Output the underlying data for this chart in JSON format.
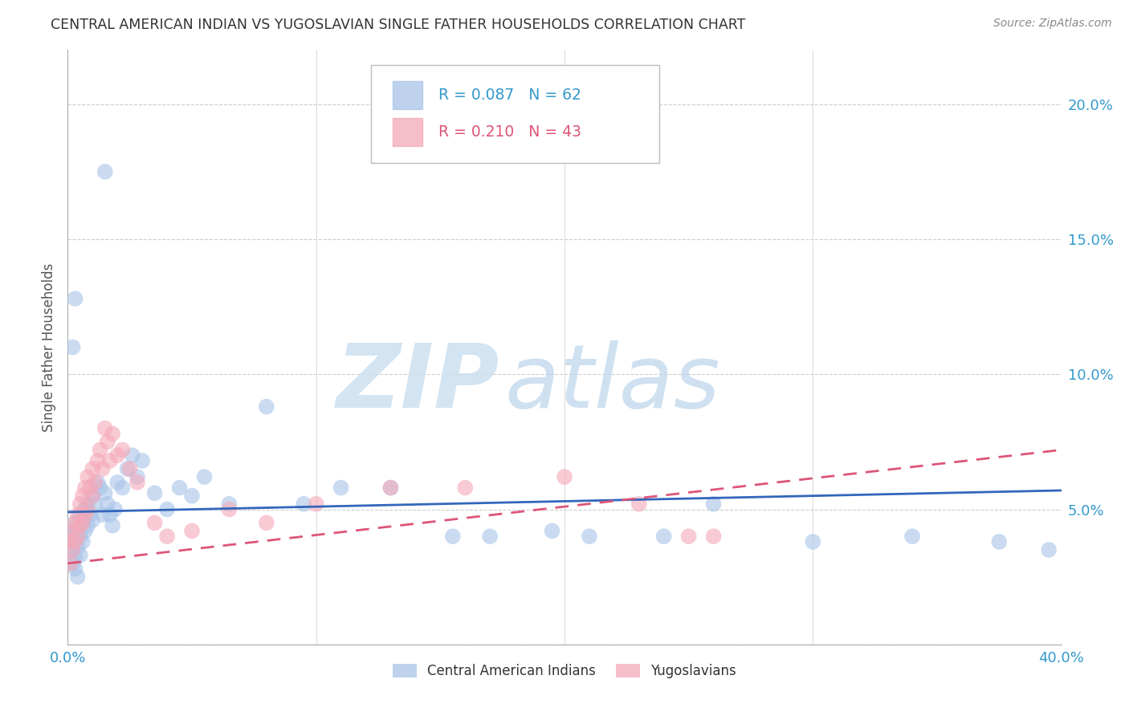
{
  "title": "CENTRAL AMERICAN INDIAN VS YUGOSLAVIAN SINGLE FATHER HOUSEHOLDS CORRELATION CHART",
  "source": "Source: ZipAtlas.com",
  "ylabel": "Single Father Households",
  "xlim": [
    0.0,
    0.4
  ],
  "ylim": [
    0.0,
    0.22
  ],
  "blue_R": "0.087",
  "blue_N": "62",
  "pink_R": "0.210",
  "pink_N": "43",
  "legend_label_blue": "Central American Indians",
  "legend_label_pink": "Yugoslavians",
  "blue_color": "#a8c4e8",
  "pink_color": "#f4a8b8",
  "blue_line_color": "#3366bb",
  "pink_line_color": "#dd5577",
  "background_color": "#ffffff",
  "blue_line_y0": 0.049,
  "blue_line_y1": 0.057,
  "pink_line_y0": 0.03,
  "pink_line_y1": 0.072,
  "blue_x": [
    0.001,
    0.001,
    0.002,
    0.002,
    0.002,
    0.003,
    0.003,
    0.003,
    0.003,
    0.004,
    0.004,
    0.004,
    0.005,
    0.005,
    0.005,
    0.006,
    0.006,
    0.007,
    0.007,
    0.008,
    0.008,
    0.009,
    0.01,
    0.01,
    0.011,
    0.012,
    0.013,
    0.014,
    0.015,
    0.016,
    0.017,
    0.018,
    0.019,
    0.02,
    0.022,
    0.024,
    0.026,
    0.028,
    0.03,
    0.035,
    0.04,
    0.045,
    0.05,
    0.055,
    0.065,
    0.08,
    0.095,
    0.11,
    0.13,
    0.155,
    0.17,
    0.195,
    0.21,
    0.24,
    0.26,
    0.3,
    0.34,
    0.375,
    0.395,
    0.002,
    0.003,
    0.015
  ],
  "blue_y": [
    0.04,
    0.035,
    0.042,
    0.038,
    0.03,
    0.045,
    0.038,
    0.032,
    0.028,
    0.043,
    0.036,
    0.025,
    0.048,
    0.04,
    0.033,
    0.046,
    0.038,
    0.05,
    0.042,
    0.052,
    0.044,
    0.048,
    0.055,
    0.046,
    0.052,
    0.06,
    0.058,
    0.048,
    0.056,
    0.052,
    0.048,
    0.044,
    0.05,
    0.06,
    0.058,
    0.065,
    0.07,
    0.062,
    0.068,
    0.056,
    0.05,
    0.058,
    0.055,
    0.062,
    0.052,
    0.088,
    0.052,
    0.058,
    0.058,
    0.04,
    0.04,
    0.042,
    0.04,
    0.04,
    0.052,
    0.038,
    0.04,
    0.038,
    0.035,
    0.11,
    0.128,
    0.175
  ],
  "pink_x": [
    0.001,
    0.001,
    0.002,
    0.002,
    0.003,
    0.003,
    0.004,
    0.004,
    0.005,
    0.005,
    0.006,
    0.006,
    0.007,
    0.007,
    0.008,
    0.008,
    0.009,
    0.01,
    0.01,
    0.011,
    0.012,
    0.013,
    0.014,
    0.015,
    0.016,
    0.017,
    0.018,
    0.02,
    0.022,
    0.025,
    0.028,
    0.035,
    0.04,
    0.05,
    0.065,
    0.08,
    0.1,
    0.13,
    0.16,
    0.2,
    0.23,
    0.25,
    0.26
  ],
  "pink_y": [
    0.038,
    0.03,
    0.042,
    0.035,
    0.045,
    0.038,
    0.048,
    0.04,
    0.052,
    0.044,
    0.055,
    0.045,
    0.058,
    0.048,
    0.062,
    0.05,
    0.058,
    0.065,
    0.055,
    0.06,
    0.068,
    0.072,
    0.065,
    0.08,
    0.075,
    0.068,
    0.078,
    0.07,
    0.072,
    0.065,
    0.06,
    0.045,
    0.04,
    0.042,
    0.05,
    0.045,
    0.052,
    0.058,
    0.058,
    0.062,
    0.052,
    0.04,
    0.04
  ]
}
